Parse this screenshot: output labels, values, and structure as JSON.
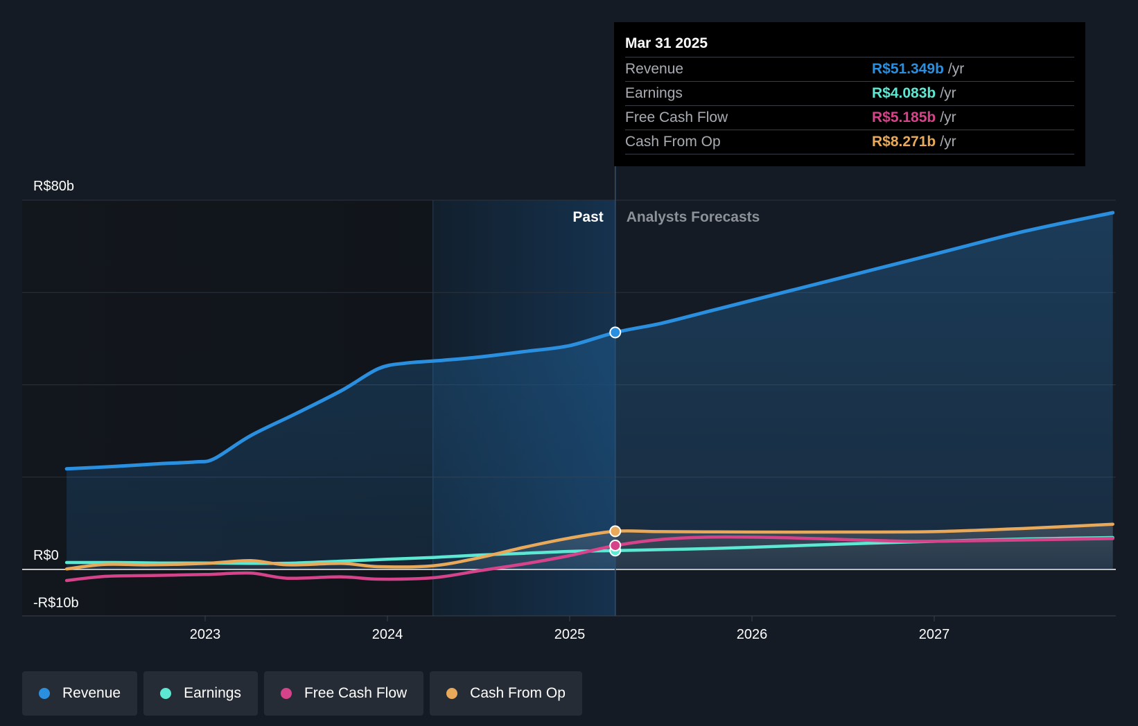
{
  "chart_data": {
    "type": "line",
    "title": "",
    "y_unit": "R$ billions",
    "ylim": [
      -10,
      80
    ],
    "y_tick_labels": [
      {
        "value": 80,
        "label": "R$80b"
      },
      {
        "value": 0,
        "label": "R$0"
      },
      {
        "value": -10,
        "label": "-R$10b"
      }
    ],
    "gridlines": [
      80,
      60,
      40,
      20,
      0
    ],
    "x_range": [
      2022.2,
      2027.98
    ],
    "x_tick_labels": [
      {
        "value": 2023,
        "label": "2023"
      },
      {
        "value": 2024,
        "label": "2024"
      },
      {
        "value": 2025,
        "label": "2025"
      },
      {
        "value": 2026,
        "label": "2026"
      },
      {
        "value": 2027,
        "label": "2027"
      }
    ],
    "past_label": "Past",
    "forecast_label": "Analysts Forecasts",
    "past_end": 2025.25,
    "highlight_start": 2024.25,
    "series": [
      {
        "name": "Revenue",
        "color": "#2b8fe0",
        "fill": true,
        "points": [
          [
            2022.24,
            21.8
          ],
          [
            2022.5,
            22.3
          ],
          [
            2022.75,
            22.9
          ],
          [
            2022.95,
            23.3
          ],
          [
            2023.05,
            24.0
          ],
          [
            2023.25,
            29.0
          ],
          [
            2023.5,
            33.8
          ],
          [
            2023.75,
            38.8
          ],
          [
            2023.95,
            43.5
          ],
          [
            2024.1,
            44.7
          ],
          [
            2024.3,
            45.3
          ],
          [
            2024.5,
            46.0
          ],
          [
            2024.75,
            47.2
          ],
          [
            2025.0,
            48.5
          ],
          [
            2025.25,
            51.349
          ],
          [
            2025.5,
            53.3
          ],
          [
            2025.75,
            55.8
          ],
          [
            2026.0,
            58.3
          ],
          [
            2026.5,
            63.3
          ],
          [
            2027.0,
            68.3
          ],
          [
            2027.5,
            73.3
          ],
          [
            2027.98,
            77.3
          ]
        ],
        "forecast_dashed": false
      },
      {
        "name": "Earnings",
        "color": "#5ce8d2",
        "fill": false,
        "points": [
          [
            2022.24,
            1.5
          ],
          [
            2022.5,
            1.5
          ],
          [
            2022.75,
            1.4
          ],
          [
            2023.0,
            1.4
          ],
          [
            2023.25,
            1.3
          ],
          [
            2023.5,
            1.4
          ],
          [
            2023.75,
            1.8
          ],
          [
            2024.0,
            2.2
          ],
          [
            2024.25,
            2.6
          ],
          [
            2024.5,
            3.1
          ],
          [
            2024.75,
            3.5
          ],
          [
            2025.0,
            3.9
          ],
          [
            2025.25,
            4.083
          ],
          [
            2025.5,
            4.3
          ],
          [
            2025.75,
            4.5
          ],
          [
            2026.0,
            4.8
          ],
          [
            2026.5,
            5.5
          ],
          [
            2027.0,
            6.1
          ],
          [
            2027.5,
            6.6
          ],
          [
            2027.98,
            6.9
          ]
        ]
      },
      {
        "name": "Free Cash Flow",
        "color": "#d5448a",
        "fill": false,
        "points": [
          [
            2022.24,
            -2.4
          ],
          [
            2022.45,
            -1.5
          ],
          [
            2022.7,
            -1.3
          ],
          [
            2023.0,
            -1.1
          ],
          [
            2023.25,
            -0.8
          ],
          [
            2023.45,
            -1.9
          ],
          [
            2023.75,
            -1.6
          ],
          [
            2023.95,
            -2.1
          ],
          [
            2024.25,
            -1.8
          ],
          [
            2024.5,
            -0.3
          ],
          [
            2024.75,
            1.2
          ],
          [
            2025.0,
            3.0
          ],
          [
            2025.25,
            5.185
          ],
          [
            2025.5,
            6.5
          ],
          [
            2025.75,
            7.0
          ],
          [
            2026.0,
            7.0
          ],
          [
            2026.25,
            6.8
          ],
          [
            2026.5,
            6.5
          ],
          [
            2026.75,
            6.2
          ],
          [
            2027.0,
            6.1
          ],
          [
            2027.5,
            6.4
          ],
          [
            2027.98,
            6.7
          ]
        ]
      },
      {
        "name": "Cash From Op",
        "color": "#e8a95a",
        "fill": false,
        "points": [
          [
            2022.24,
            0.1
          ],
          [
            2022.45,
            1.1
          ],
          [
            2022.7,
            1.0
          ],
          [
            2023.0,
            1.3
          ],
          [
            2023.25,
            1.9
          ],
          [
            2023.45,
            1.0
          ],
          [
            2023.75,
            1.3
          ],
          [
            2023.95,
            0.6
          ],
          [
            2024.25,
            0.8
          ],
          [
            2024.5,
            2.5
          ],
          [
            2024.75,
            4.8
          ],
          [
            2025.0,
            6.8
          ],
          [
            2025.25,
            8.271
          ],
          [
            2025.5,
            8.2
          ],
          [
            2026.0,
            8.1
          ],
          [
            2026.5,
            8.1
          ],
          [
            2027.0,
            8.2
          ],
          [
            2027.5,
            8.9
          ],
          [
            2027.98,
            9.8
          ]
        ]
      }
    ]
  },
  "tooltip": {
    "date": "Mar 31 2025",
    "rows": [
      {
        "label": "Revenue",
        "value": "R$51.349b",
        "unit": "/yr",
        "color": "#2b8fe0"
      },
      {
        "label": "Earnings",
        "value": "R$4.083b",
        "unit": "/yr",
        "color": "#5ce8d2"
      },
      {
        "label": "Free Cash Flow",
        "value": "R$5.185b",
        "unit": "/yr",
        "color": "#d5448a"
      },
      {
        "label": "Cash From Op",
        "value": "R$8.271b",
        "unit": "/yr",
        "color": "#e8a95a"
      }
    ]
  },
  "legend": [
    {
      "label": "Revenue",
      "color": "#2b8fe0"
    },
    {
      "label": "Earnings",
      "color": "#5ce8d2"
    },
    {
      "label": "Free Cash Flow",
      "color": "#d5448a"
    },
    {
      "label": "Cash From Op",
      "color": "#e8a95a"
    }
  ]
}
